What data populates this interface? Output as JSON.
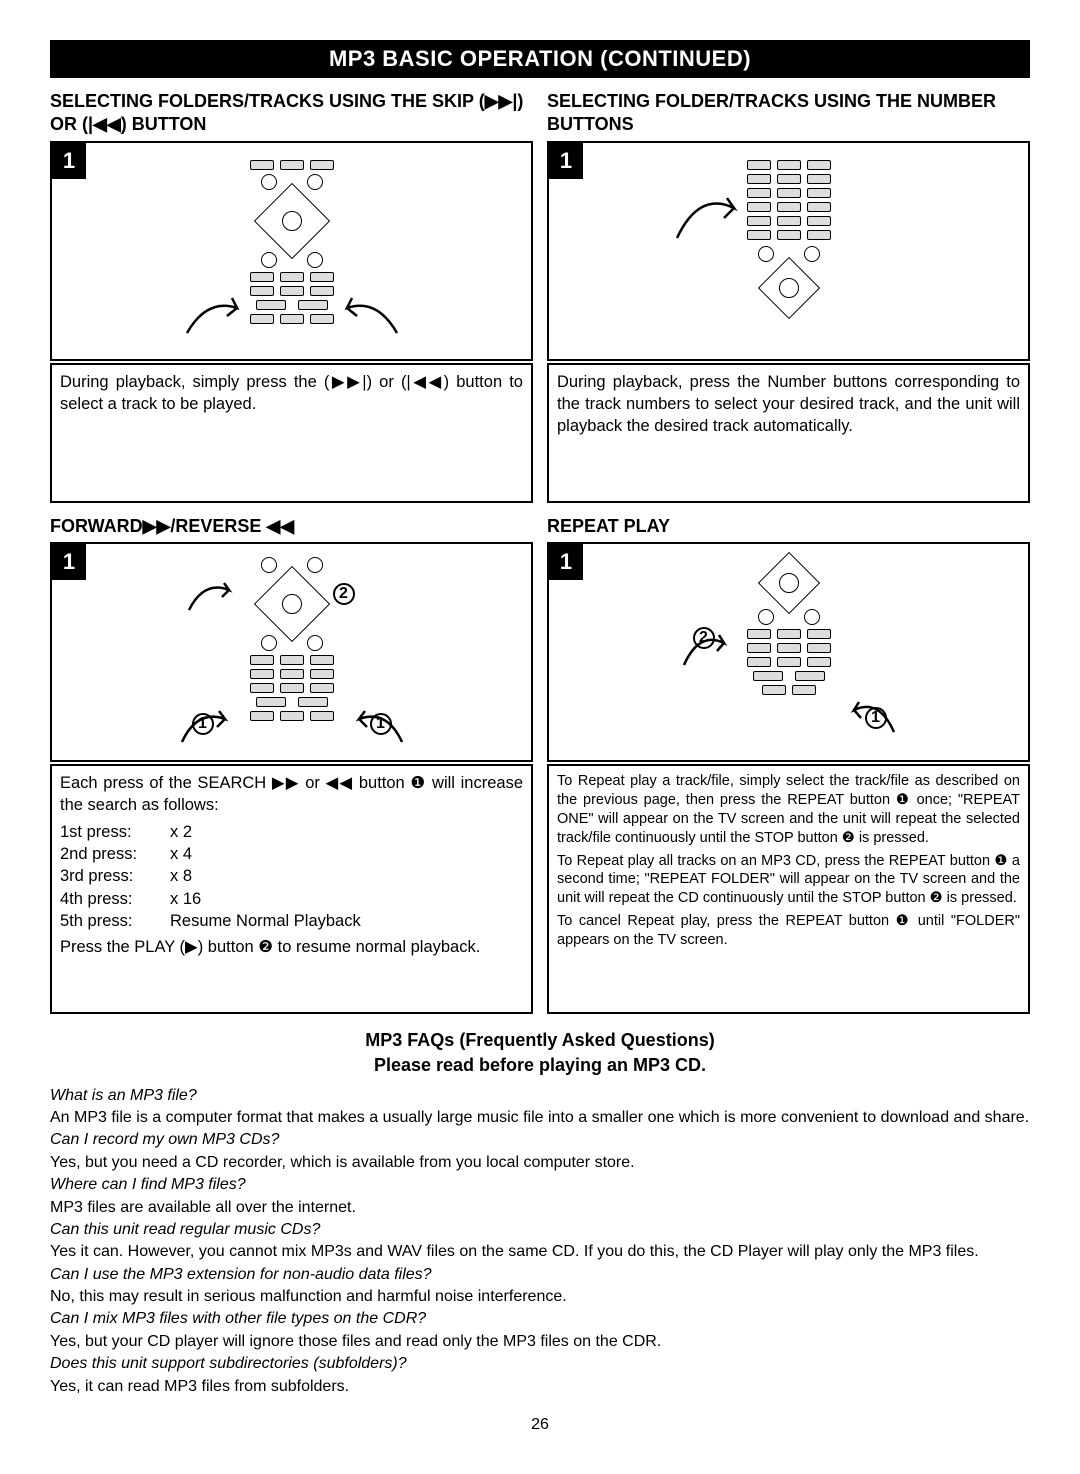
{
  "page_number": "26",
  "title_bar": "MP3 BASIC OPERATION (CONTINUED)",
  "sections": {
    "skip": {
      "heading": "SELECTING FOLDERS/TRACKS USING THE SKIP (▶▶|) OR (|◀◀) BUTTON",
      "step": "1",
      "desc": "During playback, simply press the (▶▶|) or (|◀◀) button to select a track to be played."
    },
    "number": {
      "heading": "SELECTING FOLDER/TRACKS USING THE NUMBER BUTTONS",
      "step": "1",
      "desc": "During playback, press the Number buttons corresponding to the track numbers to select your desired track, and the unit will playback the desired track automatically."
    },
    "forward": {
      "heading": "FORWARD▶▶/REVERSE ◀◀",
      "step": "1",
      "callout_a": "2",
      "callout_b": "1",
      "callout_c": "1",
      "desc_intro": "Each press of the SEARCH ▶▶ or ◀◀ button ❶ will increase the search as follows:",
      "presses": [
        {
          "label": "1st press:",
          "val": "x 2"
        },
        {
          "label": "2nd press:",
          "val": "x 4"
        },
        {
          "label": "3rd press:",
          "val": "x 8"
        },
        {
          "label": "4th press:",
          "val": "x 16"
        },
        {
          "label": "5th press:",
          "val": "Resume Normal Playback"
        }
      ],
      "desc_outro": "Press the PLAY (▶) button ❷ to resume normal playback."
    },
    "repeat": {
      "heading": "REPEAT PLAY",
      "step": "1",
      "callout_a": "2",
      "callout_b": "1",
      "p1": "To Repeat play a track/file, simply select the track/file as described on the previous page, then press the REPEAT button ❶ once; \"REPEAT ONE\" will appear on the TV screen and the unit will repeat the selected track/file continuously until the STOP button ❷ is pressed.",
      "p2": "To Repeat play all tracks on an MP3 CD, press the REPEAT button ❶ a second time; \"REPEAT FOLDER\" will appear on the TV screen and the unit will repeat the CD continuously until the STOP button ❷ is pressed.",
      "p3": "To cancel Repeat play, press the REPEAT button ❶ until \"FOLDER\" appears on the TV screen."
    }
  },
  "faq": {
    "header1": "MP3 FAQs (Frequently Asked Questions)",
    "header2": "Please read before playing an MP3 CD.",
    "items": [
      {
        "q": "What is an MP3 file?",
        "a": "An MP3 file is a computer format that makes a usually large music file into a smaller one which is more convenient to download and share."
      },
      {
        "q": "Can I record my own MP3 CDs?",
        "a": "Yes, but you need a CD recorder, which is available from you local computer store."
      },
      {
        "q": "Where can I find MP3 files?",
        "a": "MP3 files are available all over the internet."
      },
      {
        "q": "Can this unit read regular music CDs?",
        "a": "Yes it can. However, you cannot mix MP3s and WAV files on the same CD. If you do this, the CD Player will play only the MP3 files."
      },
      {
        "q": "Can I use the MP3 extension for non-audio data files?",
        "a": "No, this may result in serious malfunction and harmful noise interference."
      },
      {
        "q": "Can I mix MP3 files with other file types on the CDR?",
        "a": "Yes, but your CD player will ignore those files and read only the MP3 files on the CDR."
      },
      {
        "q": "Does this unit support subdirectories (subfolders)?",
        "a": "Yes, it can read MP3 files from subfolders."
      }
    ]
  },
  "colors": {
    "black": "#000000",
    "white": "#ffffff",
    "button_fill": "#dddddd"
  }
}
